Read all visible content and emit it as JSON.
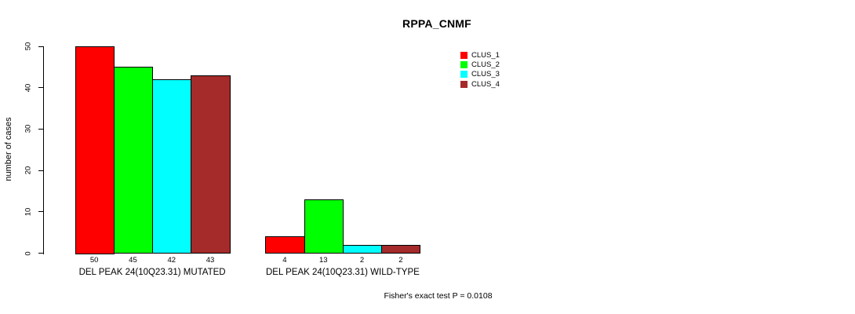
{
  "chart_data": {
    "type": "bar",
    "title": "RPPA_CNMF",
    "ylabel": "number of cases",
    "ylim": [
      0,
      50
    ],
    "yticks": [
      0,
      10,
      20,
      30,
      40,
      50
    ],
    "grid": false,
    "legend_position": "top-right",
    "categories": [
      "DEL PEAK 24(10Q23.31) MUTATED",
      "DEL PEAK 24(10Q23.31) WILD-TYPE"
    ],
    "series": [
      {
        "name": "CLUS_1",
        "color": "#FF0000",
        "values": [
          50,
          4
        ]
      },
      {
        "name": "CLUS_2",
        "color": "#00FF00",
        "values": [
          45,
          13
        ]
      },
      {
        "name": "CLUS_3",
        "color": "#00FFFF",
        "values": [
          42,
          2
        ]
      },
      {
        "name": "CLUS_4",
        "color": "#A52A2A",
        "values": [
          43,
          2
        ]
      }
    ],
    "bar_value_labels": [
      [
        "50",
        "45",
        "42",
        "43"
      ],
      [
        "4",
        "13",
        "2",
        "2"
      ]
    ],
    "annotation": "Fisher's exact test P = 0.0108"
  }
}
